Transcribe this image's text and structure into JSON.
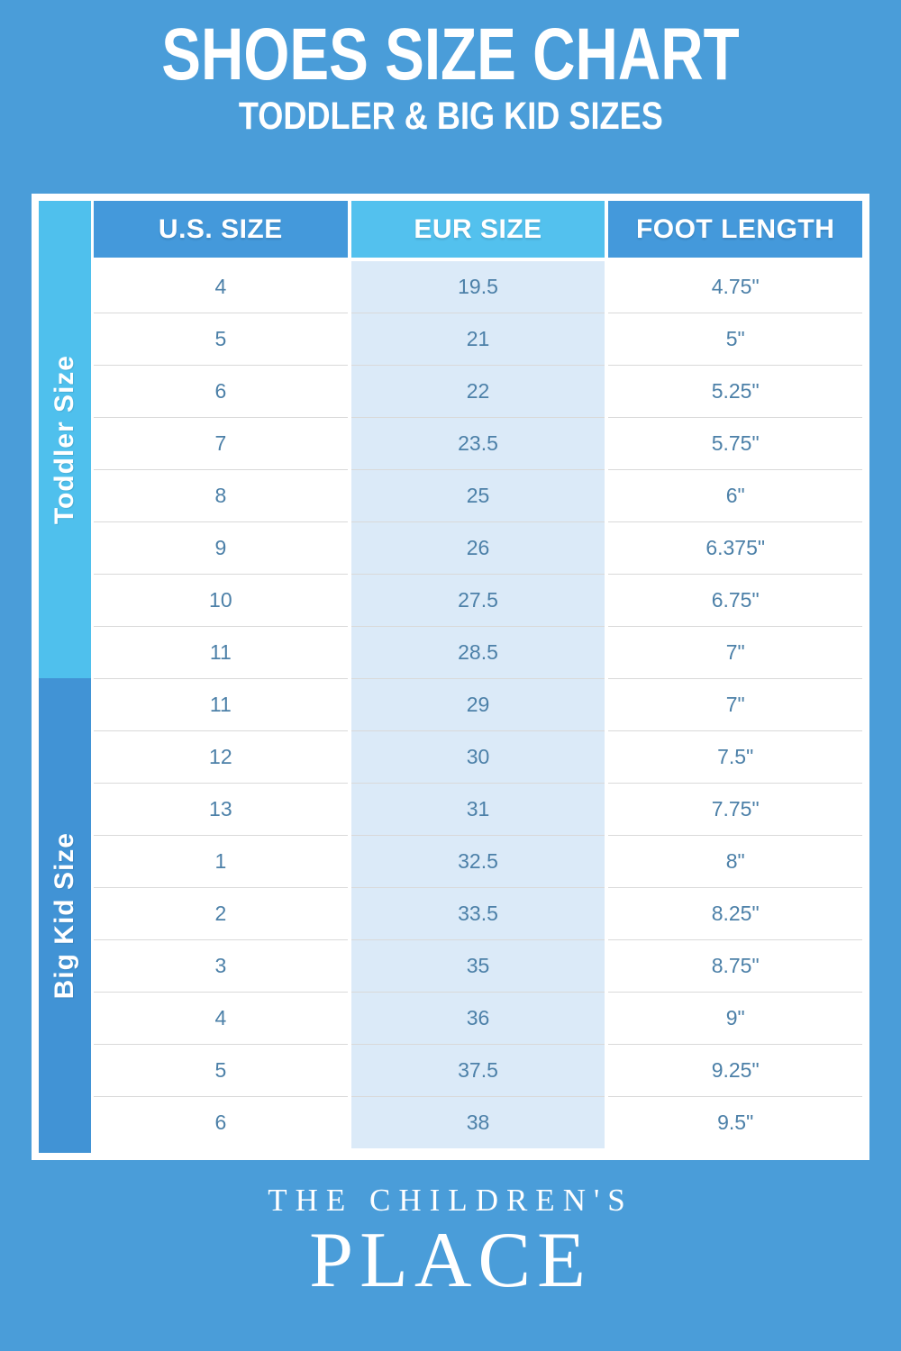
{
  "page": {
    "title": "SHOES SIZE CHART",
    "subtitle": "TODDLER & BIG KID SIZES"
  },
  "colors": {
    "background": "#4A9DD9",
    "toddler_strip": "#4FC0ED",
    "bigkid_strip": "#4193D5",
    "header_blue": "#4499DB",
    "header_cyan": "#53C1EE",
    "eur_cell_bg": "#DBEAF8",
    "cell_text": "#4C80A8",
    "card_bg": "#FFFFFF"
  },
  "table": {
    "columns": [
      "U.S. SIZE",
      "EUR SIZE",
      "FOOT LENGTH"
    ],
    "sections": [
      {
        "label": "Toddler Size",
        "rows": [
          [
            "4",
            "19.5",
            "4.75\""
          ],
          [
            "5",
            "21",
            "5\""
          ],
          [
            "6",
            "22",
            "5.25\""
          ],
          [
            "7",
            "23.5",
            "5.75\""
          ],
          [
            "8",
            "25",
            "6\""
          ],
          [
            "9",
            "26",
            "6.375\""
          ],
          [
            "10",
            "27.5",
            "6.75\""
          ],
          [
            "11",
            "28.5",
            "7\""
          ]
        ]
      },
      {
        "label": "Big Kid Size",
        "rows": [
          [
            "11",
            "29",
            "7\""
          ],
          [
            "12",
            "30",
            "7.5\""
          ],
          [
            "13",
            "31",
            "7.75\""
          ],
          [
            "1",
            "32.5",
            "8\""
          ],
          [
            "2",
            "33.5",
            "8.25\""
          ],
          [
            "3",
            "35",
            "8.75\""
          ],
          [
            "4",
            "36",
            "9\""
          ],
          [
            "5",
            "37.5",
            "9.25\""
          ],
          [
            "6",
            "38",
            "9.5\""
          ]
        ]
      }
    ]
  },
  "footer": {
    "brand_top": "THE CHILDREN'S",
    "brand_bottom": "PLACE"
  },
  "chart_data": {
    "type": "table",
    "title": "SHOES SIZE CHART",
    "subtitle": "TODDLER & BIG KID SIZES",
    "columns": [
      "U.S. SIZE",
      "EUR SIZE",
      "FOOT LENGTH"
    ],
    "sections": [
      {
        "group": "Toddler Size",
        "rows": [
          {
            "us_size": "4",
            "eur_size": "19.5",
            "foot_length": "4.75\""
          },
          {
            "us_size": "5",
            "eur_size": "21",
            "foot_length": "5\""
          },
          {
            "us_size": "6",
            "eur_size": "22",
            "foot_length": "5.25\""
          },
          {
            "us_size": "7",
            "eur_size": "23.5",
            "foot_length": "5.75\""
          },
          {
            "us_size": "8",
            "eur_size": "25",
            "foot_length": "6\""
          },
          {
            "us_size": "9",
            "eur_size": "26",
            "foot_length": "6.375\""
          },
          {
            "us_size": "10",
            "eur_size": "27.5",
            "foot_length": "6.75\""
          },
          {
            "us_size": "11",
            "eur_size": "28.5",
            "foot_length": "7\""
          }
        ]
      },
      {
        "group": "Big Kid Size",
        "rows": [
          {
            "us_size": "11",
            "eur_size": "29",
            "foot_length": "7\""
          },
          {
            "us_size": "12",
            "eur_size": "30",
            "foot_length": "7.5\""
          },
          {
            "us_size": "13",
            "eur_size": "31",
            "foot_length": "7.75\""
          },
          {
            "us_size": "1",
            "eur_size": "32.5",
            "foot_length": "8\""
          },
          {
            "us_size": "2",
            "eur_size": "33.5",
            "foot_length": "8.25\""
          },
          {
            "us_size": "3",
            "eur_size": "35",
            "foot_length": "8.75\""
          },
          {
            "us_size": "4",
            "eur_size": "36",
            "foot_length": "9\""
          },
          {
            "us_size": "5",
            "eur_size": "37.5",
            "foot_length": "9.25\""
          },
          {
            "us_size": "6",
            "eur_size": "38",
            "foot_length": "9.5\""
          }
        ]
      }
    ]
  }
}
